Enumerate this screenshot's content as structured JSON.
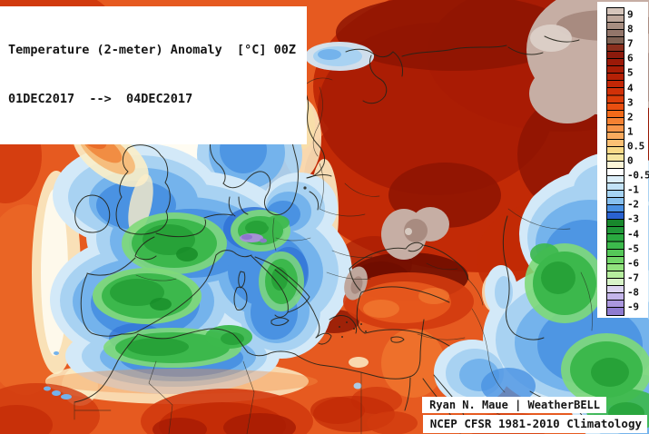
{
  "title": {
    "line1": "Temperature (2-meter) Anomaly  [°C] 00Z",
    "line2": "01DEC2017  -->  04DEC2017"
  },
  "credits": {
    "author_line": "Ryan N. Maue | WeatherBELL",
    "climo_line": "NCEP CFSR 1981-2010 Climatology"
  },
  "colorbar": {
    "unit": "°C",
    "ticks": [
      "9",
      "8",
      "7",
      "6",
      "5",
      "4",
      "3",
      "2",
      "1",
      "0.5",
      "0",
      "-0.5",
      "-1",
      "-2",
      "-3",
      "-4",
      "-5",
      "-6",
      "-7",
      "-8",
      "-9"
    ],
    "cells": [
      [
        "#d5c5bb"
      ],
      [
        "#bea89c",
        "#a78e81"
      ],
      [
        "#93766a",
        "#7f6254"
      ],
      [
        "#8a2f1e",
        "#8c1a0c"
      ],
      [
        "#9c1a08",
        "#a81d06"
      ],
      [
        "#b52106",
        "#c22706"
      ],
      [
        "#d13108",
        "#dc3e0a"
      ],
      [
        "#e94f10",
        "#f16a1a"
      ],
      [
        "#f58132",
        "#f8964a"
      ],
      [
        "#faaa5e",
        "#fcc074"
      ],
      [
        "#f8d987",
        "#f5e5a0"
      ],
      [
        "#fcf5d7",
        "#ffffff"
      ],
      [
        "#dceef9",
        "#c2e2f6"
      ],
      [
        "#a6d3f2",
        "#88c0ee"
      ],
      [
        "#4a90e2",
        "#2a62d0"
      ],
      [
        "#18882c",
        "#209838"
      ],
      [
        "#2aaa40",
        "#3cba4c"
      ],
      [
        "#55c858",
        "#72d668"
      ],
      [
        "#92e27e",
        "#b6ee9e"
      ],
      [
        "#d8f4c8",
        "#dcd4f0"
      ],
      [
        "#c4b5ea",
        "#ab97de"
      ],
      [
        "#8f7bd0"
      ]
    ]
  }
}
